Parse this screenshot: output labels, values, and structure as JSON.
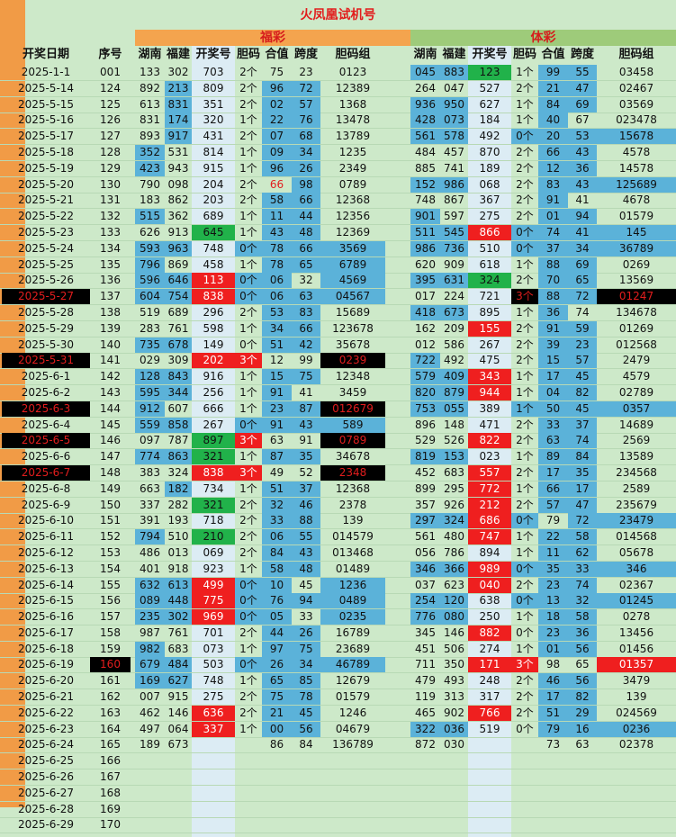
{
  "title": "火凤凰试机号",
  "fucai_label": "福彩",
  "ticai_label": "体彩",
  "headers": {
    "date": "开奖日期",
    "seq": "序号",
    "hunan": "湖南",
    "fujian": "福建",
    "prize": "开奖号",
    "dan": "胆码",
    "hezhi": "合值",
    "kuadu": "跨度",
    "group": "胆码组"
  },
  "rows": [
    {
      "date": "2025-1-1",
      "seq": "001",
      "fc": [
        "133",
        "302",
        "703",
        "2个",
        "75",
        "23",
        "0123"
      ],
      "tc": [
        "045",
        "883",
        "123",
        "1个",
        "99",
        "55",
        "03458"
      ]
    },
    {
      "date": "2025-5-14",
      "seq": "124",
      "fc": [
        "892",
        "213",
        "809",
        "2个",
        "96",
        "72",
        "12389"
      ],
      "tc": [
        "264",
        "047",
        "527",
        "2个",
        "21",
        "47",
        "02467"
      ]
    },
    {
      "date": "2025-5-15",
      "seq": "125",
      "fc": [
        "613",
        "831",
        "351",
        "2个",
        "02",
        "57",
        "1368"
      ],
      "tc": [
        "936",
        "950",
        "627",
        "1个",
        "84",
        "69",
        "03569"
      ]
    },
    {
      "date": "2025-5-16",
      "seq": "126",
      "fc": [
        "831",
        "174",
        "320",
        "1个",
        "22",
        "76",
        "13478"
      ],
      "tc": [
        "428",
        "073",
        "184",
        "1个",
        "40",
        "67",
        "023478"
      ]
    },
    {
      "date": "2025-5-17",
      "seq": "127",
      "fc": [
        "893",
        "917",
        "431",
        "2个",
        "07",
        "68",
        "13789"
      ],
      "tc": [
        "561",
        "578",
        "492",
        "0个",
        "20",
        "53",
        "15678"
      ]
    },
    {
      "date": "2025-5-18",
      "seq": "128",
      "fc": [
        "352",
        "531",
        "814",
        "1个",
        "09",
        "34",
        "1235"
      ],
      "tc": [
        "484",
        "457",
        "870",
        "2个",
        "66",
        "43",
        "4578"
      ]
    },
    {
      "date": "2025-5-19",
      "seq": "129",
      "fc": [
        "423",
        "943",
        "915",
        "1个",
        "96",
        "26",
        "2349"
      ],
      "tc": [
        "885",
        "741",
        "189",
        "2个",
        "12",
        "36",
        "14578"
      ]
    },
    {
      "date": "2025-5-20",
      "seq": "130",
      "fc": [
        "790",
        "098",
        "204",
        "2个",
        "66",
        "98",
        "0789"
      ],
      "tc": [
        "152",
        "986",
        "068",
        "2个",
        "83",
        "43",
        "125689"
      ]
    },
    {
      "date": "2025-5-21",
      "seq": "131",
      "fc": [
        "183",
        "862",
        "203",
        "2个",
        "58",
        "66",
        "12368"
      ],
      "tc": [
        "748",
        "867",
        "367",
        "2个",
        "91",
        "41",
        "4678"
      ]
    },
    {
      "date": "2025-5-22",
      "seq": "132",
      "fc": [
        "515",
        "362",
        "689",
        "1个",
        "11",
        "44",
        "12356"
      ],
      "tc": [
        "901",
        "597",
        "275",
        "2个",
        "01",
        "94",
        "01579"
      ]
    },
    {
      "date": "2025-5-23",
      "seq": "133",
      "fc": [
        "626",
        "913",
        "645",
        "1个",
        "43",
        "48",
        "12369"
      ],
      "tc": [
        "511",
        "545",
        "866",
        "0个",
        "74",
        "41",
        "145"
      ]
    },
    {
      "date": "2025-5-24",
      "seq": "134",
      "fc": [
        "593",
        "963",
        "748",
        "0个",
        "78",
        "66",
        "3569"
      ],
      "tc": [
        "986",
        "736",
        "510",
        "0个",
        "37",
        "34",
        "36789"
      ]
    },
    {
      "date": "2025-5-25",
      "seq": "135",
      "fc": [
        "796",
        "869",
        "458",
        "1个",
        "78",
        "65",
        "6789"
      ],
      "tc": [
        "620",
        "909",
        "618",
        "1个",
        "88",
        "69",
        "0269"
      ]
    },
    {
      "date": "2025-5-26",
      "seq": "136",
      "fc": [
        "596",
        "646",
        "113",
        "0个",
        "06",
        "32",
        "4569"
      ],
      "tc": [
        "395",
        "631",
        "324",
        "2个",
        "70",
        "65",
        "13569"
      ]
    },
    {
      "date": "2025-5-27",
      "seq": "137",
      "fc": [
        "604",
        "754",
        "838",
        "0个",
        "06",
        "63",
        "04567"
      ],
      "tc": [
        "017",
        "224",
        "721",
        "3个",
        "88",
        "72",
        "01247"
      ]
    },
    {
      "date": "2025-5-28",
      "seq": "138",
      "fc": [
        "519",
        "689",
        "296",
        "2个",
        "53",
        "83",
        "15689"
      ],
      "tc": [
        "418",
        "673",
        "895",
        "1个",
        "36",
        "74",
        "134678"
      ]
    },
    {
      "date": "2025-5-29",
      "seq": "139",
      "fc": [
        "283",
        "761",
        "598",
        "1个",
        "34",
        "66",
        "123678"
      ],
      "tc": [
        "162",
        "209",
        "155",
        "2个",
        "91",
        "59",
        "01269"
      ]
    },
    {
      "date": "2025-5-30",
      "seq": "140",
      "fc": [
        "735",
        "678",
        "149",
        "0个",
        "51",
        "42",
        "35678"
      ],
      "tc": [
        "012",
        "586",
        "267",
        "2个",
        "39",
        "23",
        "012568"
      ]
    },
    {
      "date": "2025-5-31",
      "seq": "141",
      "fc": [
        "029",
        "309",
        "202",
        "3个",
        "12",
        "99",
        "0239"
      ],
      "tc": [
        "722",
        "492",
        "475",
        "2个",
        "15",
        "57",
        "2479"
      ]
    },
    {
      "date": "2025-6-1",
      "seq": "142",
      "fc": [
        "128",
        "843",
        "916",
        "1个",
        "15",
        "75",
        "12348"
      ],
      "tc": [
        "579",
        "409",
        "343",
        "1个",
        "17",
        "45",
        "4579"
      ]
    },
    {
      "date": "2025-6-2",
      "seq": "143",
      "fc": [
        "595",
        "344",
        "256",
        "1个",
        "91",
        "41",
        "3459"
      ],
      "tc": [
        "820",
        "879",
        "944",
        "1个",
        "04",
        "82",
        "02789"
      ]
    },
    {
      "date": "2025-6-3",
      "seq": "144",
      "fc": [
        "912",
        "607",
        "666",
        "1个",
        "23",
        "87",
        "012679"
      ],
      "tc": [
        "753",
        "055",
        "389",
        "1个",
        "50",
        "45",
        "0357"
      ]
    },
    {
      "date": "2025-6-4",
      "seq": "145",
      "fc": [
        "559",
        "858",
        "267",
        "0个",
        "91",
        "43",
        "589"
      ],
      "tc": [
        "896",
        "148",
        "471",
        "2个",
        "33",
        "37",
        "14689"
      ]
    },
    {
      "date": "2025-6-5",
      "seq": "146",
      "fc": [
        "097",
        "787",
        "897",
        "3个",
        "63",
        "91",
        "0789"
      ],
      "tc": [
        "529",
        "526",
        "822",
        "2个",
        "63",
        "74",
        "2569"
      ]
    },
    {
      "date": "2025-6-6",
      "seq": "147",
      "fc": [
        "774",
        "863",
        "321",
        "1个",
        "87",
        "35",
        "34678"
      ],
      "tc": [
        "819",
        "153",
        "023",
        "1个",
        "89",
        "84",
        "13589"
      ]
    },
    {
      "date": "2025-6-7",
      "seq": "148",
      "fc": [
        "383",
        "324",
        "838",
        "3个",
        "49",
        "52",
        "2348"
      ],
      "tc": [
        "452",
        "683",
        "557",
        "2个",
        "17",
        "35",
        "234568"
      ]
    },
    {
      "date": "2025-6-8",
      "seq": "149",
      "fc": [
        "663",
        "182",
        "734",
        "1个",
        "51",
        "37",
        "12368"
      ],
      "tc": [
        "899",
        "295",
        "772",
        "1个",
        "66",
        "17",
        "2589"
      ]
    },
    {
      "date": "2025-6-9",
      "seq": "150",
      "fc": [
        "337",
        "282",
        "321",
        "2个",
        "32",
        "46",
        "2378"
      ],
      "tc": [
        "357",
        "926",
        "212",
        "2个",
        "57",
        "47",
        "235679"
      ]
    },
    {
      "date": "2025-6-10",
      "seq": "151",
      "fc": [
        "391",
        "193",
        "718",
        "2个",
        "33",
        "88",
        "139"
      ],
      "tc": [
        "297",
        "324",
        "686",
        "0个",
        "79",
        "72",
        "23479"
      ]
    },
    {
      "date": "2025-6-11",
      "seq": "152",
      "fc": [
        "794",
        "510",
        "210",
        "2个",
        "06",
        "55",
        "014579"
      ],
      "tc": [
        "561",
        "480",
        "747",
        "1个",
        "22",
        "58",
        "014568"
      ]
    },
    {
      "date": "2025-6-12",
      "seq": "153",
      "fc": [
        "486",
        "013",
        "069",
        "2个",
        "84",
        "43",
        "013468"
      ],
      "tc": [
        "056",
        "786",
        "894",
        "1个",
        "11",
        "62",
        "05678"
      ]
    },
    {
      "date": "2025-6-13",
      "seq": "154",
      "fc": [
        "401",
        "918",
        "923",
        "1个",
        "58",
        "48",
        "01489"
      ],
      "tc": [
        "346",
        "366",
        "989",
        "0个",
        "35",
        "33",
        "346"
      ]
    },
    {
      "date": "2025-6-14",
      "seq": "155",
      "fc": [
        "632",
        "613",
        "499",
        "0个",
        "10",
        "45",
        "1236"
      ],
      "tc": [
        "037",
        "623",
        "040",
        "2个",
        "23",
        "74",
        "02367"
      ]
    },
    {
      "date": "2025-6-15",
      "seq": "156",
      "fc": [
        "089",
        "448",
        "775",
        "0个",
        "76",
        "94",
        "0489"
      ],
      "tc": [
        "254",
        "120",
        "638",
        "0个",
        "13",
        "32",
        "01245"
      ]
    },
    {
      "date": "2025-6-16",
      "seq": "157",
      "fc": [
        "235",
        "302",
        "969",
        "0个",
        "05",
        "33",
        "0235"
      ],
      "tc": [
        "776",
        "080",
        "250",
        "1个",
        "18",
        "58",
        "0278"
      ]
    },
    {
      "date": "2025-6-17",
      "seq": "158",
      "fc": [
        "987",
        "761",
        "701",
        "2个",
        "44",
        "26",
        "16789"
      ],
      "tc": [
        "345",
        "146",
        "882",
        "0个",
        "23",
        "36",
        "13456"
      ]
    },
    {
      "date": "2025-6-18",
      "seq": "159",
      "fc": [
        "982",
        "683",
        "073",
        "1个",
        "97",
        "75",
        "23689"
      ],
      "tc": [
        "451",
        "506",
        "274",
        "1个",
        "01",
        "56",
        "01456"
      ]
    },
    {
      "date": "2025-6-19",
      "seq": "160",
      "fc": [
        "679",
        "484",
        "503",
        "0个",
        "26",
        "34",
        "46789"
      ],
      "tc": [
        "711",
        "350",
        "171",
        "3个",
        "98",
        "65",
        "01357"
      ]
    },
    {
      "date": "2025-6-20",
      "seq": "161",
      "fc": [
        "169",
        "627",
        "748",
        "1个",
        "65",
        "85",
        "12679"
      ],
      "tc": [
        "479",
        "493",
        "248",
        "2个",
        "46",
        "56",
        "3479"
      ]
    },
    {
      "date": "2025-6-21",
      "seq": "162",
      "fc": [
        "007",
        "915",
        "275",
        "2个",
        "75",
        "78",
        "01579"
      ],
      "tc": [
        "119",
        "313",
        "317",
        "2个",
        "17",
        "82",
        "139"
      ]
    },
    {
      "date": "2025-6-22",
      "seq": "163",
      "fc": [
        "462",
        "146",
        "636",
        "2个",
        "21",
        "45",
        "1246"
      ],
      "tc": [
        "465",
        "902",
        "766",
        "2个",
        "51",
        "29",
        "024569"
      ]
    },
    {
      "date": "2025-6-23",
      "seq": "164",
      "fc": [
        "497",
        "064",
        "337",
        "1个",
        "00",
        "56",
        "04679"
      ],
      "tc": [
        "322",
        "036",
        "519",
        "0个",
        "79",
        "16",
        "0236"
      ]
    },
    {
      "date": "2025-6-24",
      "seq": "165",
      "fc": [
        "189",
        "673",
        "",
        "",
        "86",
        "84",
        "136789"
      ],
      "tc": [
        "872",
        "030",
        "",
        "",
        "73",
        "63",
        "02378"
      ]
    },
    {
      "date": "2025-6-25",
      "seq": "166",
      "fc": [
        "",
        "",
        "",
        "",
        "",
        "",
        ""
      ],
      "tc": [
        "",
        "",
        "",
        "",
        "",
        "",
        ""
      ]
    },
    {
      "date": "2025-6-26",
      "seq": "167",
      "fc": [
        "",
        "",
        "",
        "",
        "",
        "",
        ""
      ],
      "tc": [
        "",
        "",
        "",
        "",
        "",
        "",
        ""
      ]
    },
    {
      "date": "2025-6-27",
      "seq": "168",
      "fc": [
        "",
        "",
        "",
        "",
        "",
        "",
        ""
      ],
      "tc": [
        "",
        "",
        "",
        "",
        "",
        "",
        ""
      ]
    },
    {
      "date": "2025-6-28",
      "seq": "169",
      "fc": [
        "",
        "",
        "",
        "",
        "",
        "",
        ""
      ],
      "tc": [
        "",
        "",
        "",
        "",
        "",
        "",
        ""
      ]
    },
    {
      "date": "2025-6-29",
      "seq": "170",
      "fc": [
        "",
        "",
        "",
        "",
        "",
        "",
        ""
      ],
      "tc": [
        "",
        "",
        "",
        "",
        "",
        "",
        ""
      ]
    }
  ],
  "colors": {
    "background": "#cde9c9",
    "blue": "#5bb2d9",
    "red": "#ef1f1f",
    "green": "#21b24a",
    "orange": "#f19b46",
    "title": "#e21d1d"
  }
}
